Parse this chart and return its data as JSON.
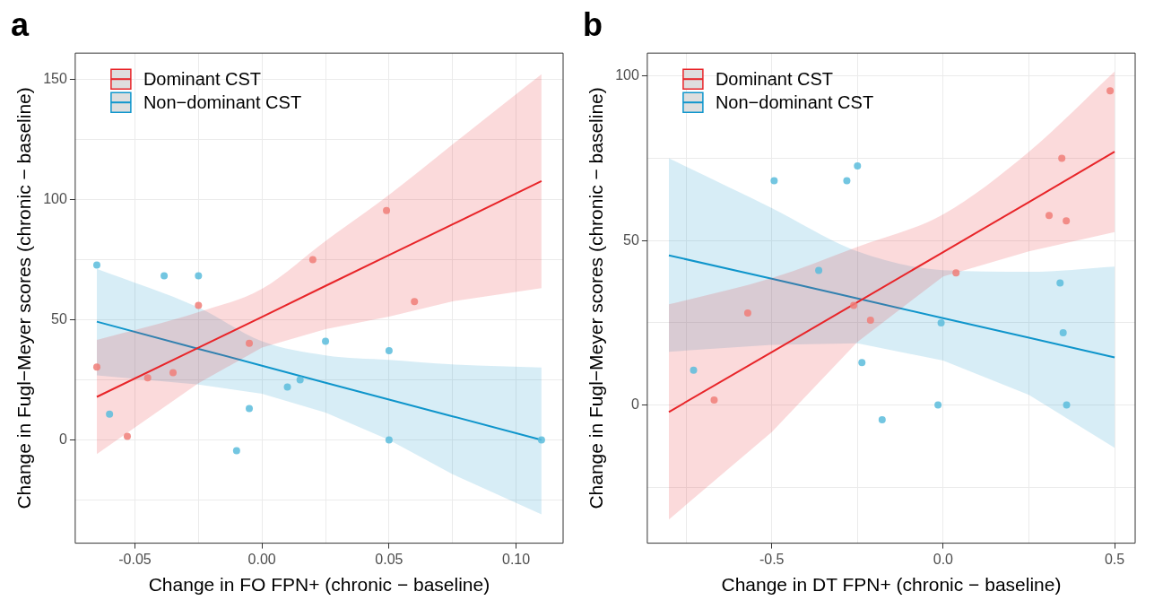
{
  "chart_data": [
    {
      "type": "scatter",
      "title": "a",
      "xlabel": "Change in FO FPN+ (chronic − baseline)",
      "ylabel": "Change in Fugl−Meyer scores (chronic − baseline)",
      "xlim": [
        -0.0735,
        0.1185
      ],
      "xticks": [
        -0.05,
        {
          "value": -0.025,
          "label": null
        },
        {
          "value": 0,
          "label": "0.00"
        },
        {
          "value": 0.025,
          "label": null
        },
        0.05,
        {
          "value": 0.075,
          "label": null
        },
        {
          "value": 0.1,
          "label": "0.10"
        }
      ],
      "ylim": [
        -43,
        161
      ],
      "yticks": [
        {
          "value": -25,
          "label": null
        },
        0,
        {
          "value": 25,
          "label": null
        },
        50,
        {
          "value": 75,
          "label": null
        },
        100,
        {
          "value": 125,
          "label": null
        },
        150
      ],
      "grid": true,
      "legend": "top left",
      "line_style": "solid",
      "series": [
        {
          "marker": "circle",
          "color": "#f07e78",
          "x": [
            -0.065,
            -0.053,
            -0.045,
            -0.035,
            -0.025,
            -0.005,
            0.02,
            0.049,
            0.06
          ],
          "values": [
            30.3,
            1.5,
            25.8,
            28,
            56,
            40.2,
            75,
            95.5,
            57.6
          ]
        },
        {
          "marker": "circle",
          "color": "#5bbcdc",
          "x": [
            -0.065,
            -0.06,
            -0.0385,
            -0.025,
            -0.01,
            -0.005,
            0.01,
            0.015,
            0.025,
            0.05,
            0.05,
            0.11
          ],
          "values": [
            72.8,
            10.7,
            68.3,
            68.3,
            -4.5,
            13,
            22,
            25,
            41,
            37.1,
            0,
            0
          ]
        },
        {
          "type": "line",
          "name": "Dominant CST",
          "color": "#e8262a",
          "x": [
            -0.065,
            -0.025,
            0,
            0.025,
            0.05,
            0.075,
            0.11
          ],
          "values": [
            17.9,
            38.4,
            51.2,
            64.1,
            76.9,
            89.7,
            107.7
          ],
          "lower": [
            -5.9,
            23.6,
            38.4,
            46.1,
            51.3,
            57.7,
            63.2
          ],
          "upper": [
            41.6,
            53.2,
            62.9,
            82.8,
            102,
            123,
            152.2
          ]
        },
        {
          "type": "line",
          "name": "Non−dominant CST",
          "color": "#0f96cc",
          "x": [
            -0.065,
            -0.025,
            0,
            0.025,
            0.05,
            0.075,
            0.11
          ],
          "values": [
            49.2,
            37.9,
            30.9,
            23.8,
            16.8,
            9.8,
            0
          ],
          "lower": [
            26.9,
            23,
            19.2,
            11.4,
            0,
            -14.3,
            -31
          ],
          "upper": [
            71.2,
            55.1,
            41,
            35.2,
            33.3,
            31.4,
            30.1
          ]
        }
      ]
    },
    {
      "type": "scatter",
      "title": "b",
      "xlabel": "Change in DT FPN+ (chronic − baseline)",
      "ylabel": "Change in Fugl−Meyer scores (chronic − baseline)",
      "xlim": [
        -0.863,
        0.56
      ],
      "xticks": [
        {
          "value": -0.75,
          "label": null
        },
        -0.5,
        {
          "value": -0.25,
          "label": null
        },
        {
          "value": 0,
          "label": "0.0"
        },
        {
          "value": 0.25,
          "label": null
        },
        0.5
      ],
      "ylim": [
        -42,
        107
      ],
      "yticks": [
        {
          "value": -25,
          "label": null
        },
        0,
        {
          "value": 25,
          "label": null
        },
        50,
        {
          "value": 75,
          "label": null
        },
        100
      ],
      "grid": true,
      "legend": "top left",
      "line_style": "solid",
      "series": [
        {
          "marker": "circle",
          "color": "#f07e78",
          "x": [
            -0.668,
            -0.57,
            -0.261,
            -0.212,
            0.0375,
            0.309,
            0.346,
            0.359,
            0.487
          ],
          "values": [
            1.5,
            28,
            30.3,
            25.8,
            40.2,
            57.6,
            75,
            56,
            95.5
          ]
        },
        {
          "marker": "circle",
          "color": "#5bbcdc",
          "x": [
            -0.728,
            -0.493,
            -0.363,
            -0.281,
            -0.25,
            -0.237,
            -0.178,
            -0.015,
            -0.006,
            0.341,
            0.35,
            0.36
          ],
          "values": [
            10.6,
            68.2,
            40.9,
            68.2,
            72.7,
            12.9,
            -4.5,
            0,
            25,
            37.1,
            22,
            0
          ]
        },
        {
          "type": "line",
          "name": "Dominant CST",
          "color": "#e8262a",
          "x": [
            -0.8,
            -0.5,
            -0.25,
            0,
            0.25,
            0.5
          ],
          "values": [
            -2.1,
            16.1,
            31.3,
            46.5,
            61.7,
            77
          ],
          "lower": [
            -34.8,
            -8.2,
            19.2,
            39.1,
            46.7,
            52.6
          ],
          "upper": [
            30.6,
            38.6,
            48.1,
            58,
            77,
            101.4
          ]
        },
        {
          "type": "line",
          "name": "Non−dominant CST",
          "color": "#0f96cc",
          "x": [
            -0.8,
            -0.5,
            -0.25,
            0,
            0.25,
            0.5
          ],
          "values": [
            45.5,
            38.4,
            32.4,
            26.4,
            20.5,
            14.5
          ],
          "lower": [
            16.2,
            18.3,
            18.8,
            13.5,
            3.1,
            -13
          ],
          "upper": [
            75,
            59.9,
            46.7,
            41,
            40.5,
            42.1
          ]
        }
      ]
    }
  ]
}
